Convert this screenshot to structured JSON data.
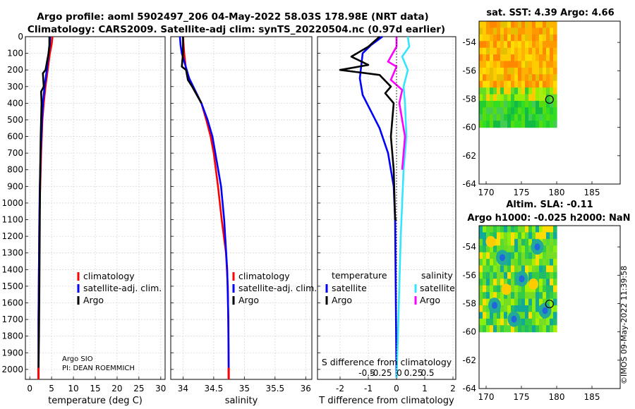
{
  "header": {
    "title_line1": "Argo profile: aoml 5902497_206 04-May-2022 58.03S 178.98E (NRT data)",
    "title_line2": "Climatology: CARS2009. Satellite-adj clim: synTS_20220504.nc (0.97d earlier)"
  },
  "credits": {
    "line1": "Argo SIO",
    "line2": "PI: DEAN ROEMMICH",
    "stamp": "©IMOS 09-May-2022 11:39:58"
  },
  "colors": {
    "red": "#ff0000",
    "blue": "#0000ff",
    "black": "#000000",
    "cyan": "#33e5ff",
    "magenta": "#ff00ff",
    "grid": "#d9d9d9"
  },
  "chart_data": [
    {
      "type": "line",
      "id": "temperature",
      "xlabel": "temperature (deg C)",
      "ylabel": "",
      "xlim": [
        -1,
        31
      ],
      "ylim": [
        2060,
        0
      ],
      "y_reversed": true,
      "xticks": [
        0,
        5,
        10,
        15,
        20,
        25,
        30
      ],
      "xtick_labels": [
        "0",
        "5",
        "10",
        "15",
        "20",
        "25",
        "30"
      ],
      "yticks": [
        0,
        100,
        200,
        300,
        400,
        500,
        600,
        700,
        800,
        900,
        1000,
        1100,
        1200,
        1300,
        1400,
        1500,
        1600,
        1700,
        1800,
        1900,
        2000
      ],
      "ytick_labels": [
        "0",
        "100",
        "200",
        "300",
        "400",
        "500",
        "600",
        "700",
        "800",
        "900",
        "1000",
        "1100",
        "1200",
        "1300",
        "1400",
        "1500",
        "1600",
        "1700",
        "1800",
        "1900",
        "2000"
      ],
      "legend": [
        "climatology",
        "satellite-adj. clim.",
        "Argo"
      ],
      "series": [
        {
          "name": "climatology",
          "color": "#ff0000",
          "x": [
            5.2,
            5.0,
            4.6,
            4.1,
            3.6,
            3.2,
            2.9,
            2.6,
            2.4,
            2.2,
            2.1,
            2.0,
            2.0
          ],
          "y": [
            0,
            50,
            100,
            200,
            300,
            400,
            500,
            700,
            900,
            1100,
            1400,
            1700,
            2050
          ]
        },
        {
          "name": "satellite-adj. clim.",
          "color": "#0000ff",
          "x": [
            4.7,
            4.6,
            4.3,
            3.9,
            3.4,
            3.0,
            2.8,
            2.5,
            2.3,
            2.2,
            2.1,
            2.0,
            2.0
          ],
          "y": [
            0,
            50,
            100,
            200,
            300,
            400,
            500,
            700,
            900,
            1100,
            1400,
            1700,
            2050
          ]
        },
        {
          "name": "Argo",
          "color": "#000000",
          "x": [
            4.5,
            4.5,
            4.3,
            3.6,
            3.0,
            3.2,
            2.6,
            2.7,
            2.5,
            2.4,
            2.3,
            2.2,
            2.1,
            2.0
          ],
          "y": [
            0,
            50,
            100,
            200,
            220,
            300,
            330,
            400,
            600,
            800,
            1100,
            1500,
            1800,
            2000
          ]
        }
      ]
    },
    {
      "type": "line",
      "id": "salinity",
      "xlabel": "salinity",
      "xlim": [
        33.8,
        36.1
      ],
      "ylim": [
        2060,
        0
      ],
      "y_reversed": true,
      "xticks": [
        34,
        34.5,
        35,
        35.5,
        36
      ],
      "xtick_labels": [
        "34",
        "34.5",
        "35",
        "35.5",
        "36"
      ],
      "legend": [
        "climatology",
        "satellite-adj. clim.",
        "Argo"
      ],
      "series": [
        {
          "name": "climatology",
          "color": "#ff0000",
          "x": [
            34.0,
            34.02,
            34.05,
            34.15,
            34.3,
            34.38,
            34.45,
            34.5,
            34.57,
            34.63,
            34.7,
            34.73,
            34.74,
            34.745
          ],
          "y": [
            0,
            100,
            200,
            300,
            400,
            500,
            600,
            700,
            900,
            1100,
            1300,
            1500,
            1800,
            2050
          ]
        },
        {
          "name": "satellite-adj. clim.",
          "color": "#0000ff",
          "x": [
            33.95,
            33.96,
            33.98,
            34.1,
            34.3,
            34.4,
            34.48,
            34.55,
            34.62,
            34.67,
            34.72,
            34.74,
            34.745
          ],
          "y": [
            0,
            50,
            100,
            250,
            400,
            500,
            600,
            750,
            900,
            1100,
            1400,
            1700,
            2050
          ]
        },
        {
          "name": "Argo",
          "color": "#000000",
          "x": [
            34.0,
            34.0,
            33.98,
            34.05,
            34.08,
            34.15,
            34.3
          ],
          "y": [
            0,
            100,
            180,
            200,
            260,
            300,
            400
          ]
        }
      ]
    },
    {
      "type": "line",
      "id": "differences",
      "xlabel": "T difference from climatology",
      "xlabel_top": "S difference from climatology",
      "xlim": [
        -2.8,
        2.1
      ],
      "ylim": [
        2060,
        0
      ],
      "y_reversed": true,
      "xticks": [
        -2,
        -1,
        0,
        1,
        2
      ],
      "xtick_labels": [
        "-2",
        "-1",
        "0",
        "1",
        "2"
      ],
      "s_xticks": [
        -1,
        -0.5,
        0,
        0.5,
        1
      ],
      "s_xtick_labels": [
        "-0.5",
        "-0.25",
        "0",
        "0.25",
        "0.5"
      ],
      "legend_temperature": {
        "title": "temperature",
        "items": [
          "satellite",
          "Argo"
        ]
      },
      "legend_salinity": {
        "title": "salinity",
        "items": [
          "satellite",
          "Argo"
        ]
      },
      "series": [
        {
          "name": "temperature satellite",
          "color": "#0000ff",
          "x": [
            -0.5,
            -0.9,
            -1.2,
            -1.3,
            -1.2,
            -0.9,
            -0.6,
            -0.3,
            -0.1,
            -0.05,
            0
          ],
          "y": [
            0,
            50,
            100,
            250,
            350,
            450,
            550,
            700,
            900,
            1100,
            2050
          ]
        },
        {
          "name": "temperature Argo",
          "color": "#000000",
          "x": [
            -0.6,
            -1.0,
            -1.6,
            -1.0,
            -2.0,
            -0.6,
            -0.2,
            -0.4,
            -0.1,
            -0.2,
            -0.1,
            -0.05,
            0
          ],
          "y": [
            0,
            60,
            120,
            170,
            200,
            230,
            300,
            340,
            400,
            600,
            800,
            1100,
            1100
          ]
        },
        {
          "name": "salinity satellite",
          "color": "#33e5ff",
          "x": [
            0.4,
            0.45,
            0.2,
            0.4,
            0.25,
            0.3,
            0.35,
            0.25,
            0.2,
            0.15,
            0.1,
            0.05,
            0.0
          ],
          "y": [
            0,
            60,
            120,
            200,
            300,
            400,
            600,
            800,
            1000,
            1200,
            1500,
            1800,
            2050
          ]
        },
        {
          "name": "salinity Argo",
          "color": "#ff00ff",
          "x": [
            0.0,
            0.0,
            -0.3,
            0.0,
            -0.2,
            0.2,
            0.1,
            0.3,
            0.2
          ],
          "y": [
            0,
            60,
            150,
            180,
            260,
            320,
            400,
            600,
            800
          ]
        }
      ]
    },
    {
      "type": "heatmap",
      "id": "sst_map",
      "title": "sat. SST: 4.39 Argo: 4.66",
      "xlim": [
        169,
        189
      ],
      "ylim": [
        -64,
        -52.5
      ],
      "xticks": [
        170,
        175,
        180,
        185
      ],
      "xtick_labels": [
        "170",
        "175",
        "180",
        "185"
      ],
      "yticks": [
        -54,
        -56,
        -58,
        -60,
        -62,
        -64
      ],
      "ytick_labels": [
        "-54",
        "-56",
        "-58",
        "-60",
        "-62",
        "-64"
      ],
      "data_extent": {
        "lon": [
          169,
          180
        ],
        "lat": [
          -60,
          -52.5
        ]
      },
      "argo_marker": {
        "lon": 178.98,
        "lat": -58.03
      }
    },
    {
      "type": "heatmap",
      "id": "sla_map",
      "title": "Altim. SLA: -0.11",
      "subtitle": "Argo h1000: -0.025 h2000: NaN",
      "xlim": [
        169,
        189
      ],
      "ylim": [
        -64,
        -52.5
      ],
      "xticks": [
        170,
        175,
        180,
        185
      ],
      "xtick_labels": [
        "170",
        "175",
        "180",
        "185"
      ],
      "yticks": [
        -54,
        -56,
        -58,
        -60,
        -62,
        -64
      ],
      "ytick_labels": [
        "-54",
        "-56",
        "-58",
        "-60",
        "-62",
        "-64"
      ],
      "data_extent": {
        "lon": [
          169,
          180
        ],
        "lat": [
          -60,
          -52.5
        ]
      },
      "argo_marker": {
        "lon": 178.98,
        "lat": -58.03
      }
    }
  ]
}
